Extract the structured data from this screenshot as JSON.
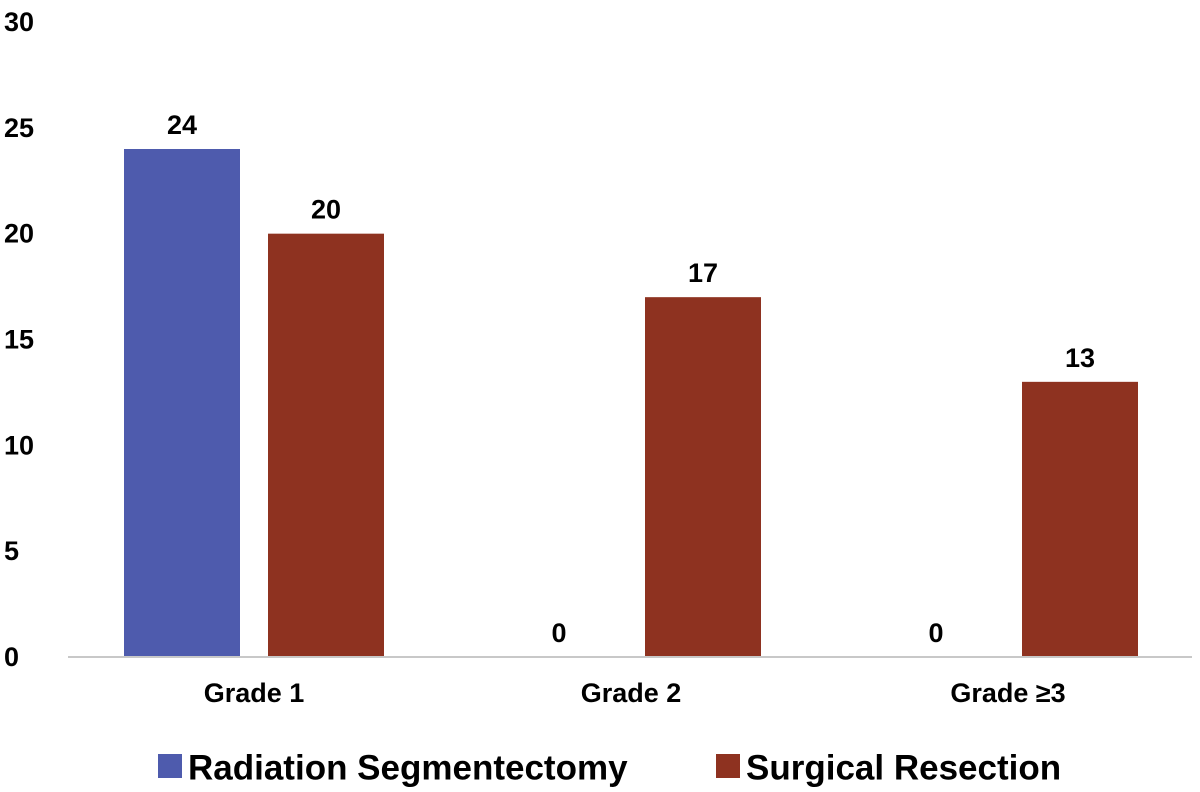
{
  "chart_data": {
    "type": "bar",
    "title": "",
    "xlabel": "",
    "ylabel": "",
    "ylim": [
      0,
      30
    ],
    "yticks": [
      "0",
      "5",
      "10",
      "15",
      "20",
      "25",
      "30"
    ],
    "grid": false,
    "legend_position": "bottom",
    "categories": [
      "Grade 1",
      "Grade 2",
      "Grade ≥3"
    ],
    "series": [
      {
        "name": "Radiation Segmentectomy",
        "color": "#4e5bad",
        "values": [
          24,
          0,
          0
        ]
      },
      {
        "name": "Surgical Resection",
        "color": "#8e3220",
        "values": [
          20,
          17,
          13
        ]
      }
    ]
  }
}
